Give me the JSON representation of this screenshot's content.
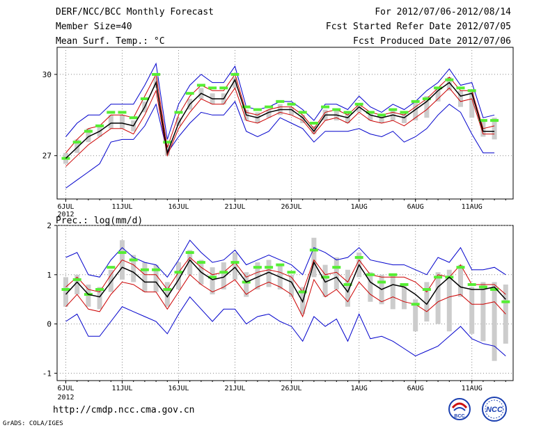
{
  "header": {
    "title": "DERF/NCC/BCC Monthly Forecast",
    "member_size": "Member Size=40",
    "variable": "Mean Surf. Temp.: °C",
    "period": "For 2012/07/06-2012/08/14",
    "started": "Fcst Started Refer Date 2012/07/05",
    "produced": "Fcst Produced Date 2012/07/06"
  },
  "footer": {
    "url": "http://cmdp.ncc.cma.gov.cn",
    "credit": "GrADS: COLA/IGES",
    "logo_left_text": "BCC",
    "logo_right_text": "NCC"
  },
  "colors": {
    "max_min": "#0000cc",
    "pct": "#cc0000",
    "mean": "#000000",
    "obs": "#55ee33",
    "box": "#cccccc",
    "grid": "#888888"
  },
  "chart_data": [
    {
      "type": "line",
      "title": "Mean Surf. Temp.: °C",
      "xlabel": "",
      "ylabel": "°C",
      "ylim": [
        25.4,
        31.0
      ],
      "x_start_day": 6,
      "x_tick_labels": [
        "6JUL",
        "11JUL",
        "16JUL",
        "21JUL",
        "26JUL",
        "1AUG",
        "6AUG",
        "11AUG"
      ],
      "x_tick_day": [
        6,
        11,
        16,
        21,
        26,
        32,
        37,
        42
      ],
      "x_sub_label": "2012",
      "y_ticks": [
        27,
        30
      ],
      "grid": true,
      "series": [
        {
          "name": "max",
          "values": [
            27.7,
            28.2,
            28.5,
            28.5,
            28.9,
            28.9,
            28.9,
            29.6,
            30.4,
            27.6,
            28.9,
            29.6,
            30.0,
            29.7,
            29.7,
            30.3,
            28.8,
            28.7,
            28.8,
            29.0,
            29.0,
            28.7,
            28.3,
            28.9,
            28.9,
            28.7,
            29.2,
            28.8,
            28.6,
            28.9,
            28.7,
            29.0,
            29.4,
            29.7,
            30.2,
            29.6,
            29.7,
            28.4,
            28.5
          ]
        },
        {
          "name": "p90",
          "values": [
            27.1,
            27.6,
            28.0,
            28.1,
            28.5,
            28.5,
            28.4,
            29.2,
            30.0,
            27.3,
            28.5,
            29.2,
            29.6,
            29.4,
            29.4,
            30.0,
            28.6,
            28.5,
            28.7,
            28.8,
            28.8,
            28.5,
            28.0,
            28.6,
            28.7,
            28.5,
            28.9,
            28.6,
            28.5,
            28.6,
            28.5,
            28.8,
            29.1,
            29.5,
            29.9,
            29.4,
            29.4,
            28.0,
            28.1
          ]
        },
        {
          "name": "mean",
          "values": [
            26.9,
            27.3,
            27.7,
            27.9,
            28.2,
            28.2,
            28.1,
            28.8,
            29.7,
            27.1,
            28.2,
            28.9,
            29.3,
            29.1,
            29.1,
            29.8,
            28.5,
            28.4,
            28.6,
            28.7,
            28.7,
            28.4,
            27.9,
            28.5,
            28.5,
            28.4,
            28.8,
            28.5,
            28.4,
            28.5,
            28.4,
            28.7,
            29.0,
            29.4,
            29.7,
            29.2,
            29.3,
            27.9,
            27.9
          ]
        },
        {
          "name": "p10",
          "values": [
            26.6,
            27.0,
            27.4,
            27.7,
            28.0,
            28.0,
            27.8,
            28.5,
            29.4,
            27.0,
            28.0,
            28.6,
            29.1,
            28.9,
            28.9,
            29.5,
            28.3,
            28.2,
            28.4,
            28.6,
            28.5,
            28.3,
            27.8,
            28.3,
            28.4,
            28.2,
            28.6,
            28.3,
            28.2,
            28.3,
            28.1,
            28.4,
            28.7,
            29.1,
            29.5,
            29.0,
            29.1,
            27.8,
            27.8
          ]
        },
        {
          "name": "min",
          "values": [
            25.8,
            26.1,
            26.4,
            26.7,
            27.5,
            27.6,
            27.6,
            28.1,
            28.9,
            27.1,
            27.7,
            28.2,
            28.6,
            28.5,
            28.5,
            29.0,
            27.9,
            27.7,
            27.9,
            28.4,
            28.2,
            28.0,
            27.5,
            27.9,
            27.9,
            27.9,
            28.0,
            27.8,
            27.7,
            27.9,
            27.5,
            27.7,
            28.0,
            28.5,
            28.9,
            28.6,
            27.8,
            27.1,
            27.1
          ]
        },
        {
          "name": "observed",
          "values": [
            26.9,
            27.5,
            27.9,
            28.1,
            28.6,
            28.6,
            28.4,
            29.1,
            30.0,
            27.5,
            28.6,
            29.3,
            29.6,
            29.5,
            29.5,
            30.0,
            28.8,
            28.7,
            28.8,
            29.0,
            28.9,
            28.6,
            28.2,
            28.8,
            28.7,
            28.6,
            28.9,
            28.6,
            28.5,
            28.7,
            28.6,
            29.0,
            29.1,
            29.5,
            29.8,
            29.5,
            29.4,
            28.3,
            28.3
          ]
        },
        {
          "name": "box_low",
          "values": [
            26.7,
            27.1,
            27.5,
            27.7,
            28.0,
            28.0,
            27.9,
            28.6,
            29.5,
            27.0,
            28.1,
            28.7,
            29.1,
            28.9,
            28.9,
            29.5,
            28.3,
            28.2,
            28.4,
            28.5,
            28.5,
            28.2,
            27.8,
            28.3,
            28.3,
            28.2,
            28.6,
            28.3,
            28.2,
            28.3,
            28.2,
            28.3,
            28.4,
            29.0,
            29.4,
            28.8,
            28.4,
            27.7,
            27.6
          ]
        },
        {
          "name": "box_high",
          "values": [
            27.1,
            27.6,
            28.0,
            28.1,
            28.5,
            28.5,
            28.3,
            29.0,
            29.9,
            27.4,
            28.4,
            29.1,
            29.5,
            29.3,
            29.3,
            29.9,
            28.7,
            28.6,
            28.7,
            28.9,
            28.8,
            28.5,
            28.1,
            28.7,
            28.7,
            28.6,
            28.9,
            28.6,
            28.5,
            28.7,
            28.6,
            29.0,
            29.2,
            29.5,
            29.9,
            29.4,
            29.4,
            28.3,
            28.4
          ]
        }
      ]
    },
    {
      "type": "line",
      "title": "Prec.: log(mm/d)",
      "xlabel": "",
      "ylabel": "log(mm/d)",
      "ylim": [
        -1.15,
        2.0
      ],
      "x_start_day": 6,
      "x_tick_labels": [
        "6JUL",
        "11JUL",
        "16JUL",
        "21JUL",
        "26JUL",
        "1AUG",
        "6AUG",
        "11AUG"
      ],
      "x_tick_day": [
        6,
        11,
        16,
        21,
        26,
        32,
        37,
        42
      ],
      "x_sub_label": "2012",
      "y_ticks": [
        -1,
        0,
        1,
        2
      ],
      "grid": true,
      "series": [
        {
          "name": "max",
          "values": [
            1.35,
            1.45,
            1.0,
            0.95,
            1.3,
            1.55,
            1.35,
            1.25,
            1.2,
            0.95,
            1.3,
            1.7,
            1.45,
            1.25,
            1.3,
            1.5,
            1.2,
            1.3,
            1.4,
            1.3,
            1.2,
            1.0,
            1.55,
            1.45,
            1.3,
            1.35,
            1.55,
            1.3,
            1.25,
            1.2,
            1.2,
            1.1,
            1.0,
            1.35,
            1.25,
            1.55,
            1.1,
            1.1,
            1.15,
            1.0
          ]
        },
        {
          "name": "p90",
          "values": [
            0.75,
            0.95,
            0.7,
            0.65,
            1.0,
            1.3,
            1.2,
            1.0,
            1.0,
            0.7,
            1.05,
            1.35,
            1.15,
            1.0,
            1.05,
            1.25,
            0.95,
            1.05,
            1.1,
            1.05,
            0.95,
            0.65,
            1.3,
            1.0,
            1.05,
            0.85,
            1.3,
            1.0,
            0.95,
            0.95,
            0.95,
            0.85,
            0.65,
            1.0,
            0.95,
            1.2,
            0.8,
            0.8,
            0.8,
            0.6
          ]
        },
        {
          "name": "mean",
          "values": [
            0.6,
            0.85,
            0.6,
            0.55,
            0.85,
            1.15,
            1.05,
            0.85,
            0.85,
            0.55,
            0.9,
            1.3,
            1.05,
            0.9,
            0.95,
            1.15,
            0.85,
            0.95,
            1.05,
            0.95,
            0.85,
            0.45,
            1.25,
            0.85,
            0.95,
            0.65,
            1.2,
            0.85,
            0.7,
            0.8,
            0.75,
            0.6,
            0.4,
            0.75,
            0.95,
            0.75,
            0.7,
            0.7,
            0.75,
            0.5
          ]
        },
        {
          "name": "p10",
          "values": [
            0.35,
            0.6,
            0.3,
            0.25,
            0.6,
            0.85,
            0.8,
            0.65,
            0.65,
            0.3,
            0.65,
            1.0,
            0.8,
            0.65,
            0.75,
            0.9,
            0.6,
            0.75,
            0.85,
            0.75,
            0.6,
            0.15,
            0.9,
            0.55,
            0.7,
            0.45,
            0.85,
            0.6,
            0.45,
            0.55,
            0.45,
            0.4,
            0.25,
            0.45,
            0.55,
            0.6,
            0.4,
            0.4,
            0.45,
            0.2
          ]
        },
        {
          "name": "min",
          "values": [
            0.05,
            0.2,
            -0.25,
            -0.25,
            0.05,
            0.35,
            0.25,
            0.15,
            0.05,
            -0.2,
            0.2,
            0.55,
            0.3,
            0.05,
            0.3,
            0.3,
            0.0,
            0.15,
            0.2,
            0.05,
            -0.05,
            -0.35,
            0.15,
            -0.05,
            0.1,
            -0.35,
            0.2,
            -0.3,
            -0.25,
            -0.35,
            -0.5,
            -0.65,
            -0.55,
            -0.45,
            -0.25,
            -0.05,
            -0.3,
            -0.4,
            -0.45,
            -0.65
          ]
        },
        {
          "name": "observed",
          "values": [
            0.7,
            0.9,
            0.6,
            0.7,
            1.15,
            1.45,
            1.3,
            1.1,
            1.1,
            0.7,
            1.05,
            1.45,
            1.25,
            0.95,
            1.05,
            1.25,
            0.85,
            1.15,
            1.15,
            1.2,
            1.05,
            0.65,
            1.5,
            0.95,
            1.15,
            0.8,
            1.35,
            1.0,
            0.85,
            1.0,
            0.8,
            0.4,
            0.7,
            0.95,
            0.95,
            1.15,
            0.8,
            0.75,
            0.7,
            0.45
          ]
        },
        {
          "name": "box_low",
          "values": [
            0.35,
            0.6,
            0.35,
            0.3,
            0.65,
            0.9,
            0.85,
            0.65,
            0.65,
            0.35,
            0.7,
            1.0,
            0.8,
            0.6,
            0.7,
            0.9,
            0.55,
            0.7,
            0.75,
            0.7,
            0.55,
            0.2,
            0.95,
            0.55,
            0.7,
            0.35,
            0.95,
            0.45,
            0.4,
            0.3,
            0.3,
            -0.15,
            0.05,
            0.0,
            -0.15,
            0.55,
            -0.2,
            -0.35,
            -0.75,
            -0.4
          ]
        },
        {
          "name": "box_high",
          "values": [
            0.95,
            1.0,
            0.8,
            0.75,
            1.1,
            1.7,
            1.4,
            1.25,
            1.2,
            0.85,
            1.25,
            1.5,
            1.3,
            1.15,
            1.25,
            1.45,
            1.05,
            1.25,
            1.3,
            1.2,
            1.0,
            0.75,
            1.75,
            1.2,
            1.35,
            1.1,
            1.45,
            1.05,
            1.0,
            1.0,
            0.8,
            0.5,
            0.85,
            1.05,
            1.1,
            1.2,
            0.75,
            0.85,
            0.85,
            0.8
          ]
        }
      ]
    }
  ]
}
